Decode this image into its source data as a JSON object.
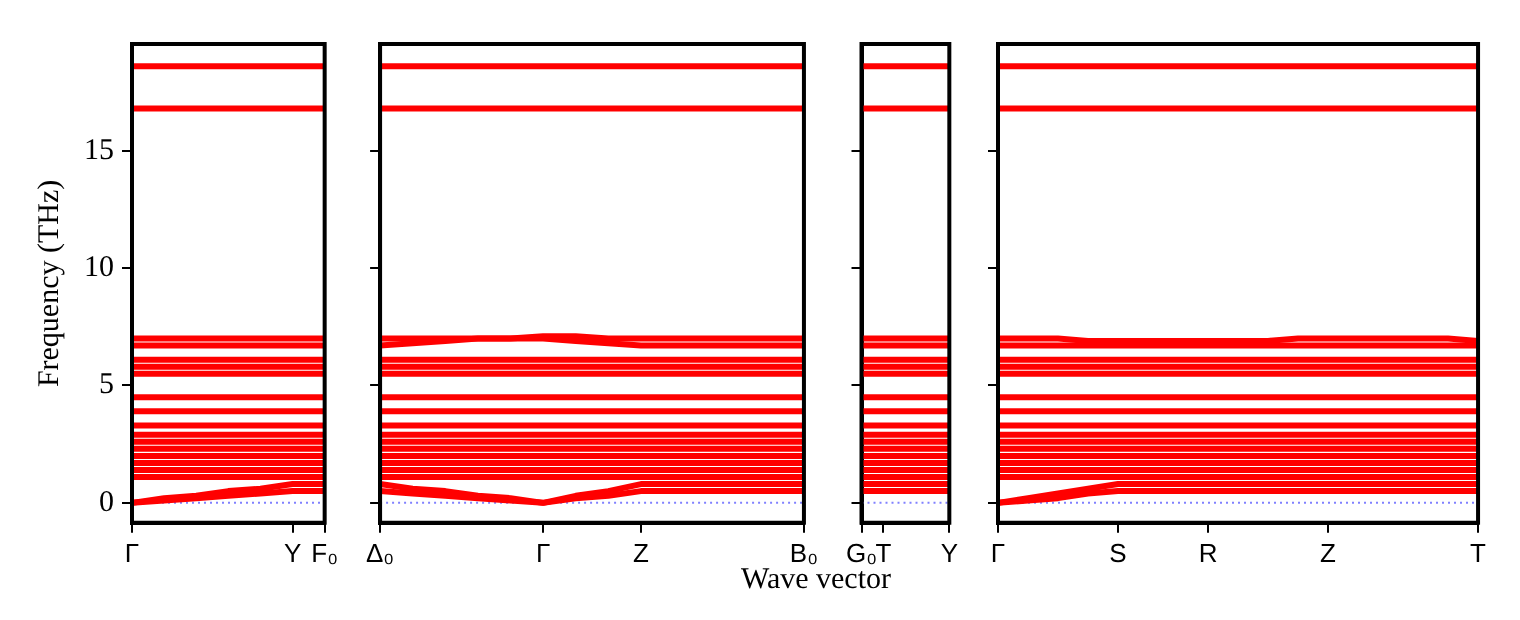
{
  "chart_data": [
    {
      "type": "line",
      "ylabel": "Frequency (THz)",
      "categories": [
        "Γ",
        null,
        null,
        null,
        null,
        "Y",
        "F₀"
      ],
      "ylim": [
        -0.85,
        19.55
      ],
      "yticks": [
        0,
        5,
        10,
        15
      ],
      "ref_lines": [
        {
          "axis": "y",
          "value": 0,
          "label": null,
          "color": "#8080ff",
          "line_style": "dotted"
        }
      ],
      "series": [
        {
          "color": "#ff0000",
          "values": [
            0,
            0.2,
            0.3,
            0.5,
            0.6,
            0.8,
            0.8
          ]
        },
        {
          "color": "#ff0000",
          "values": [
            0,
            0.1,
            0.2,
            0.3,
            0.4,
            0.5,
            0.5
          ]
        },
        {
          "color": "#ff0000",
          "values": [
            1.1,
            1.1,
            1.1,
            1.1,
            1.1,
            1.1,
            1.1
          ]
        },
        {
          "color": "#ff0000",
          "values": [
            1.4,
            1.4,
            1.4,
            1.4,
            1.4,
            1.4,
            1.4
          ]
        },
        {
          "color": "#ff0000",
          "values": [
            1.7,
            1.7,
            1.7,
            1.7,
            1.7,
            1.7,
            1.7
          ]
        },
        {
          "color": "#ff0000",
          "values": [
            2.0,
            2.0,
            2.0,
            2.0,
            2.0,
            2.0,
            2.0
          ]
        },
        {
          "color": "#ff0000",
          "values": [
            2.3,
            2.3,
            2.3,
            2.3,
            2.3,
            2.3,
            2.3
          ]
        },
        {
          "color": "#ff0000",
          "values": [
            2.6,
            2.6,
            2.6,
            2.6,
            2.6,
            2.6,
            2.6
          ]
        },
        {
          "color": "#ff0000",
          "values": [
            2.9,
            2.9,
            2.9,
            2.9,
            2.9,
            2.9,
            2.9
          ]
        },
        {
          "color": "#ff0000",
          "values": [
            3.3,
            3.3,
            3.3,
            3.3,
            3.3,
            3.3,
            3.3
          ]
        },
        {
          "color": "#ff0000",
          "values": [
            3.9,
            3.9,
            3.9,
            3.9,
            3.9,
            3.9,
            3.9
          ]
        },
        {
          "color": "#ff0000",
          "values": [
            4.5,
            4.5,
            4.5,
            4.5,
            4.5,
            4.5,
            4.5
          ]
        },
        {
          "color": "#ff0000",
          "values": [
            5.5,
            5.5,
            5.5,
            5.5,
            5.5,
            5.5,
            5.5
          ]
        },
        {
          "color": "#ff0000",
          "values": [
            5.8,
            5.8,
            5.8,
            5.8,
            5.8,
            5.8,
            5.8
          ]
        },
        {
          "color": "#ff0000",
          "values": [
            6.1,
            6.1,
            6.1,
            6.1,
            6.1,
            6.1,
            6.1
          ]
        },
        {
          "color": "#ff0000",
          "values": [
            6.7,
            6.7,
            6.7,
            6.7,
            6.7,
            6.7,
            6.7
          ]
        },
        {
          "color": "#ff0000",
          "values": [
            7.0,
            7.0,
            7.0,
            7.0,
            7.0,
            7.0,
            7.0
          ]
        },
        {
          "color": "#ff0000",
          "values": [
            16.8,
            16.8,
            16.8,
            16.8,
            16.8,
            16.8,
            16.8
          ]
        },
        {
          "color": "#ff0000",
          "values": [
            18.6,
            18.6,
            18.6,
            18.6,
            18.6,
            18.6,
            18.6
          ]
        }
      ]
    },
    {
      "type": "line",
      "tick_labels": "x",
      "categories": [
        "Δ₀",
        null,
        null,
        null,
        null,
        "Γ",
        null,
        null,
        "Z",
        null,
        null,
        null,
        null,
        "B₀"
      ],
      "ylim": [
        -0.85,
        19.55
      ],
      "yticks": [
        0,
        5,
        10,
        15
      ],
      "ref_lines": [
        {
          "axis": "y",
          "value": 0,
          "label": null,
          "color": "#8080ff",
          "line_style": "dotted"
        }
      ],
      "series": [
        {
          "color": "#ff0000",
          "values": [
            0.8,
            0.6,
            0.5,
            0.3,
            0.2,
            0,
            0.3,
            0.5,
            0.8,
            0.8,
            0.8,
            0.8,
            0.8,
            0.8
          ]
        },
        {
          "color": "#ff0000",
          "values": [
            0.5,
            0.4,
            0.3,
            0.2,
            0.1,
            0,
            0.2,
            0.3,
            0.5,
            0.5,
            0.5,
            0.5,
            0.5,
            0.5
          ]
        },
        {
          "color": "#ff0000",
          "values": [
            1.1,
            1.1,
            1.1,
            1.1,
            1.1,
            1.1,
            1.1,
            1.1,
            1.1,
            1.1,
            1.1,
            1.1,
            1.1,
            1.1
          ]
        },
        {
          "color": "#ff0000",
          "values": [
            1.4,
            1.4,
            1.4,
            1.4,
            1.4,
            1.4,
            1.4,
            1.4,
            1.4,
            1.4,
            1.4,
            1.4,
            1.4,
            1.4
          ]
        },
        {
          "color": "#ff0000",
          "values": [
            1.7,
            1.7,
            1.7,
            1.7,
            1.7,
            1.7,
            1.7,
            1.7,
            1.7,
            1.7,
            1.7,
            1.7,
            1.7,
            1.7
          ]
        },
        {
          "color": "#ff0000",
          "values": [
            2.0,
            2.0,
            2.0,
            2.0,
            2.0,
            2.0,
            2.0,
            2.0,
            2.0,
            2.0,
            2.0,
            2.0,
            2.0,
            2.0
          ]
        },
        {
          "color": "#ff0000",
          "values": [
            2.3,
            2.3,
            2.3,
            2.3,
            2.3,
            2.3,
            2.3,
            2.3,
            2.3,
            2.3,
            2.3,
            2.3,
            2.3,
            2.3
          ]
        },
        {
          "color": "#ff0000",
          "values": [
            2.6,
            2.6,
            2.6,
            2.6,
            2.6,
            2.6,
            2.6,
            2.6,
            2.6,
            2.6,
            2.6,
            2.6,
            2.6,
            2.6
          ]
        },
        {
          "color": "#ff0000",
          "values": [
            2.9,
            2.9,
            2.9,
            2.9,
            2.9,
            2.9,
            2.9,
            2.9,
            2.9,
            2.9,
            2.9,
            2.9,
            2.9,
            2.9
          ]
        },
        {
          "color": "#ff0000",
          "values": [
            3.3,
            3.3,
            3.3,
            3.3,
            3.3,
            3.3,
            3.3,
            3.3,
            3.3,
            3.3,
            3.3,
            3.3,
            3.3,
            3.3
          ]
        },
        {
          "color": "#ff0000",
          "values": [
            3.9,
            3.9,
            3.9,
            3.9,
            3.9,
            3.9,
            3.9,
            3.9,
            3.9,
            3.9,
            3.9,
            3.9,
            3.9,
            3.9
          ]
        },
        {
          "color": "#ff0000",
          "values": [
            4.5,
            4.5,
            4.5,
            4.5,
            4.5,
            4.5,
            4.5,
            4.5,
            4.5,
            4.5,
            4.5,
            4.5,
            4.5,
            4.5
          ]
        },
        {
          "color": "#ff0000",
          "values": [
            5.5,
            5.5,
            5.5,
            5.5,
            5.5,
            5.5,
            5.5,
            5.5,
            5.5,
            5.5,
            5.5,
            5.5,
            5.5,
            5.5
          ]
        },
        {
          "color": "#ff0000",
          "values": [
            5.8,
            5.8,
            5.8,
            5.8,
            5.8,
            5.8,
            5.8,
            5.8,
            5.8,
            5.8,
            5.8,
            5.8,
            5.8,
            5.8
          ]
        },
        {
          "color": "#ff0000",
          "values": [
            6.1,
            6.1,
            6.1,
            6.1,
            6.1,
            6.1,
            6.1,
            6.1,
            6.1,
            6.1,
            6.1,
            6.1,
            6.1,
            6.1
          ]
        },
        {
          "color": "#ff0000",
          "values": [
            6.7,
            6.8,
            6.9,
            7.0,
            7.0,
            7.0,
            6.9,
            6.8,
            6.7,
            6.7,
            6.7,
            6.7,
            6.7,
            6.7
          ]
        },
        {
          "color": "#ff0000",
          "values": [
            7.0,
            7.0,
            7.0,
            7.0,
            7.0,
            7.1,
            7.1,
            7.0,
            7.0,
            7.0,
            7.0,
            7.0,
            7.0,
            7.0
          ]
        },
        {
          "color": "#ff0000",
          "values": [
            16.8,
            16.8,
            16.8,
            16.8,
            16.8,
            16.8,
            16.8,
            16.8,
            16.8,
            16.8,
            16.8,
            16.8,
            16.8,
            16.8
          ]
        },
        {
          "color": "#ff0000",
          "values": [
            18.6,
            18.6,
            18.6,
            18.6,
            18.6,
            18.6,
            18.6,
            18.6,
            18.6,
            18.6,
            18.6,
            18.6,
            18.6,
            18.6
          ]
        }
      ]
    },
    {
      "type": "line",
      "tick_labels": "x",
      "xlabel": "Wave vector",
      "categories": [
        "G₀",
        "T",
        null,
        null,
        "Y"
      ],
      "ylim": [
        -0.85,
        19.55
      ],
      "yticks": [
        0,
        5,
        10,
        15
      ],
      "ref_lines": [
        {
          "axis": "y",
          "value": 0,
          "label": null,
          "color": "#8080ff",
          "line_style": "dotted"
        }
      ],
      "series": [
        {
          "color": "#ff0000",
          "values": [
            0.8,
            0.8,
            0.8,
            0.8,
            0.8
          ]
        },
        {
          "color": "#ff0000",
          "values": [
            0.5,
            0.5,
            0.5,
            0.5,
            0.5
          ]
        },
        {
          "color": "#ff0000",
          "values": [
            1.1,
            1.1,
            1.1,
            1.1,
            1.1
          ]
        },
        {
          "color": "#ff0000",
          "values": [
            1.4,
            1.4,
            1.4,
            1.4,
            1.4
          ]
        },
        {
          "color": "#ff0000",
          "values": [
            1.7,
            1.7,
            1.7,
            1.7,
            1.7
          ]
        },
        {
          "color": "#ff0000",
          "values": [
            2.0,
            2.0,
            2.0,
            2.0,
            2.0
          ]
        },
        {
          "color": "#ff0000",
          "values": [
            2.3,
            2.3,
            2.3,
            2.3,
            2.3
          ]
        },
        {
          "color": "#ff0000",
          "values": [
            2.6,
            2.6,
            2.6,
            2.6,
            2.6
          ]
        },
        {
          "color": "#ff0000",
          "values": [
            2.9,
            2.9,
            2.9,
            2.9,
            2.9
          ]
        },
        {
          "color": "#ff0000",
          "values": [
            3.3,
            3.3,
            3.3,
            3.3,
            3.3
          ]
        },
        {
          "color": "#ff0000",
          "values": [
            3.9,
            3.9,
            3.9,
            3.9,
            3.9
          ]
        },
        {
          "color": "#ff0000",
          "values": [
            4.5,
            4.5,
            4.5,
            4.5,
            4.5
          ]
        },
        {
          "color": "#ff0000",
          "values": [
            5.5,
            5.5,
            5.5,
            5.5,
            5.5
          ]
        },
        {
          "color": "#ff0000",
          "values": [
            5.8,
            5.8,
            5.8,
            5.8,
            5.8
          ]
        },
        {
          "color": "#ff0000",
          "values": [
            6.1,
            6.1,
            6.1,
            6.1,
            6.1
          ]
        },
        {
          "color": "#ff0000",
          "values": [
            6.7,
            6.7,
            6.7,
            6.7,
            6.7
          ]
        },
        {
          "color": "#ff0000",
          "values": [
            7.0,
            7.0,
            7.0,
            7.0,
            7.0
          ]
        },
        {
          "color": "#ff0000",
          "values": [
            16.8,
            16.8,
            16.8,
            16.8,
            16.8
          ]
        },
        {
          "color": "#ff0000",
          "values": [
            18.6,
            18.6,
            18.6,
            18.6,
            18.6
          ]
        }
      ]
    },
    {
      "type": "line",
      "tick_labels": "x",
      "categories": [
        "Γ",
        null,
        null,
        null,
        "S",
        null,
        null,
        "R",
        null,
        null,
        null,
        "Z",
        null,
        null,
        null,
        null,
        "T"
      ],
      "ylim": [
        -0.85,
        19.55
      ],
      "yticks": [
        0,
        5,
        10,
        15
      ],
      "ref_lines": [
        {
          "axis": "y",
          "value": 0,
          "label": null,
          "color": "#8080ff",
          "line_style": "dotted"
        }
      ],
      "series": [
        {
          "color": "#ff0000",
          "values": [
            0,
            0.2,
            0.4,
            0.6,
            0.8,
            0.8,
            0.8,
            0.8,
            0.8,
            0.8,
            0.8,
            0.8,
            0.8,
            0.8,
            0.8,
            0.8,
            0.8
          ]
        },
        {
          "color": "#ff0000",
          "values": [
            0,
            0.1,
            0.2,
            0.4,
            0.5,
            0.5,
            0.5,
            0.5,
            0.5,
            0.5,
            0.5,
            0.5,
            0.5,
            0.5,
            0.5,
            0.5,
            0.5
          ]
        },
        {
          "color": "#ff0000",
          "values": [
            1.1,
            1.1,
            1.1,
            1.1,
            1.1,
            1.1,
            1.1,
            1.1,
            1.1,
            1.1,
            1.1,
            1.1,
            1.1,
            1.1,
            1.1,
            1.1,
            1.1
          ]
        },
        {
          "color": "#ff0000",
          "values": [
            1.4,
            1.4,
            1.4,
            1.4,
            1.4,
            1.4,
            1.4,
            1.4,
            1.4,
            1.4,
            1.4,
            1.4,
            1.4,
            1.4,
            1.4,
            1.4,
            1.4
          ]
        },
        {
          "color": "#ff0000",
          "values": [
            1.7,
            1.7,
            1.7,
            1.7,
            1.7,
            1.7,
            1.7,
            1.7,
            1.7,
            1.7,
            1.7,
            1.7,
            1.7,
            1.7,
            1.7,
            1.7,
            1.7
          ]
        },
        {
          "color": "#ff0000",
          "values": [
            2.0,
            2.0,
            2.0,
            2.0,
            2.0,
            2.0,
            2.0,
            2.0,
            2.0,
            2.0,
            2.0,
            2.0,
            2.0,
            2.0,
            2.0,
            2.0,
            2.0
          ]
        },
        {
          "color": "#ff0000",
          "values": [
            2.3,
            2.3,
            2.3,
            2.3,
            2.3,
            2.3,
            2.3,
            2.3,
            2.3,
            2.3,
            2.3,
            2.3,
            2.3,
            2.3,
            2.3,
            2.3,
            2.3
          ]
        },
        {
          "color": "#ff0000",
          "values": [
            2.6,
            2.6,
            2.6,
            2.6,
            2.6,
            2.6,
            2.6,
            2.6,
            2.6,
            2.6,
            2.6,
            2.6,
            2.6,
            2.6,
            2.6,
            2.6,
            2.6
          ]
        },
        {
          "color": "#ff0000",
          "values": [
            2.9,
            2.9,
            2.9,
            2.9,
            2.9,
            2.9,
            2.9,
            2.9,
            2.9,
            2.9,
            2.9,
            2.9,
            2.9,
            2.9,
            2.9,
            2.9,
            2.9
          ]
        },
        {
          "color": "#ff0000",
          "values": [
            3.3,
            3.3,
            3.3,
            3.3,
            3.3,
            3.3,
            3.3,
            3.3,
            3.3,
            3.3,
            3.3,
            3.3,
            3.3,
            3.3,
            3.3,
            3.3,
            3.3
          ]
        },
        {
          "color": "#ff0000",
          "values": [
            3.9,
            3.9,
            3.9,
            3.9,
            3.9,
            3.9,
            3.9,
            3.9,
            3.9,
            3.9,
            3.9,
            3.9,
            3.9,
            3.9,
            3.9,
            3.9,
            3.9
          ]
        },
        {
          "color": "#ff0000",
          "values": [
            4.5,
            4.5,
            4.5,
            4.5,
            4.5,
            4.5,
            4.5,
            4.5,
            4.5,
            4.5,
            4.5,
            4.5,
            4.5,
            4.5,
            4.5,
            4.5,
            4.5
          ]
        },
        {
          "color": "#ff0000",
          "values": [
            5.5,
            5.5,
            5.5,
            5.5,
            5.5,
            5.5,
            5.5,
            5.5,
            5.5,
            5.5,
            5.5,
            5.5,
            5.5,
            5.5,
            5.5,
            5.5,
            5.5
          ]
        },
        {
          "color": "#ff0000",
          "values": [
            5.8,
            5.8,
            5.8,
            5.8,
            5.8,
            5.8,
            5.8,
            5.8,
            5.8,
            5.8,
            5.8,
            5.8,
            5.8,
            5.8,
            5.8,
            5.8,
            5.8
          ]
        },
        {
          "color": "#ff0000",
          "values": [
            6.1,
            6.1,
            6.1,
            6.1,
            6.1,
            6.1,
            6.1,
            6.1,
            6.1,
            6.1,
            6.1,
            6.1,
            6.1,
            6.1,
            6.1,
            6.1,
            6.1
          ]
        },
        {
          "color": "#ff0000",
          "values": [
            6.7,
            6.7,
            6.7,
            6.7,
            6.7,
            6.7,
            6.7,
            6.7,
            6.7,
            6.7,
            6.7,
            6.7,
            6.7,
            6.7,
            6.7,
            6.7,
            6.7
          ]
        },
        {
          "color": "#ff0000",
          "values": [
            7.0,
            7.0,
            7.0,
            6.9,
            6.9,
            6.9,
            6.9,
            6.9,
            6.9,
            6.9,
            7.0,
            7.0,
            7.0,
            7.0,
            7.0,
            7.0,
            6.9
          ]
        },
        {
          "color": "#ff0000",
          "values": [
            16.8,
            16.8,
            16.8,
            16.8,
            16.8,
            16.8,
            16.8,
            16.8,
            16.8,
            16.8,
            16.8,
            16.8,
            16.8,
            16.8,
            16.8,
            16.8,
            16.8
          ]
        },
        {
          "color": "#ff0000",
          "values": [
            18.6,
            18.6,
            18.6,
            18.6,
            18.6,
            18.6,
            18.6,
            18.6,
            18.6,
            18.6,
            18.6,
            18.6,
            18.6,
            18.6,
            18.6,
            18.6,
            18.6
          ]
        }
      ]
    }
  ]
}
